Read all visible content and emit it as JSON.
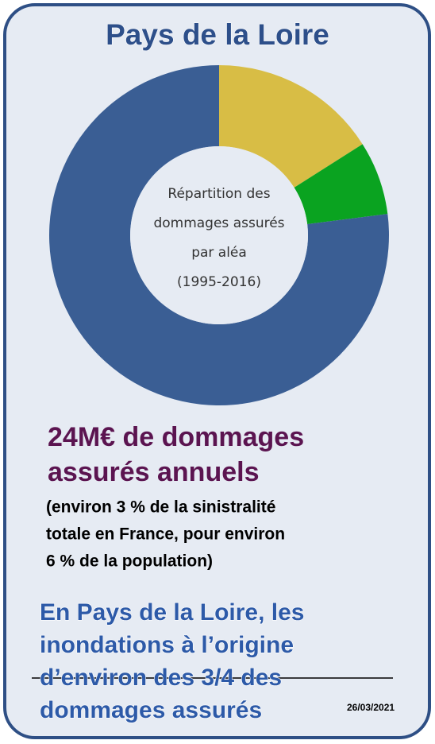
{
  "chart_data": {
    "type": "pie",
    "title": "Pays de la Loire",
    "values": [
      16,
      7,
      77
    ],
    "colors": [
      "#d8bd45",
      "#0aa320",
      "#3a5e94"
    ],
    "donut": true,
    "center_label": [
      "Répartition des",
      "dommages assurés",
      "par aléa",
      "(1995-2016)"
    ]
  },
  "headline": [
    "24M€ de dommages",
    "assurés annuels"
  ],
  "note": [
    "(environ 3 % de la sinistralité",
    "totale en France, pour environ",
    "6 % de la population)"
  ],
  "conclusion": [
    "En Pays de la Loire, les",
    "inondations à l’origine",
    "d’environ des 3/4 des",
    "dommages assurés"
  ],
  "date": "26/03/2021"
}
